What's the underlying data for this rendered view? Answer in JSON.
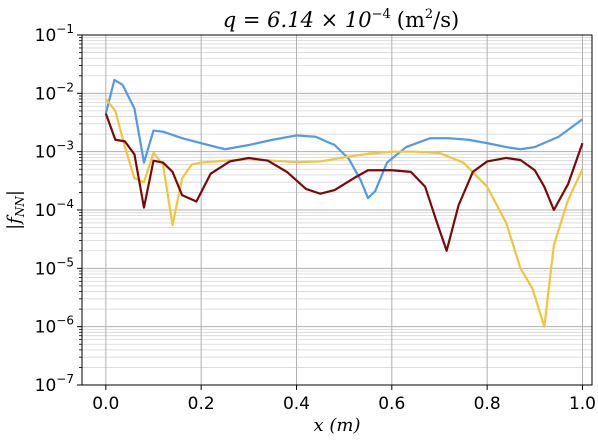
{
  "chart_data": {
    "type": "line",
    "title": {
      "prefix": "q = 6.14 × 10",
      "exponent": "−4",
      "unit_open": "(m",
      "unit_sup": "2",
      "unit_close": "/s)"
    },
    "xlabel": "x (m)",
    "ylabel": "|f_NN|",
    "ylabel_parts": {
      "bar_left": "|",
      "f": "f",
      "sub": "NN",
      "bar_right": "|"
    },
    "xlim": [
      -0.05,
      1.02
    ],
    "ylim": [
      1e-07,
      0.1
    ],
    "yscale": "log",
    "grid": "major-and-minor",
    "x_ticks": [
      "0.0",
      "0.2",
      "0.4",
      "0.6",
      "0.8",
      "1.0"
    ],
    "x_tick_values": [
      0.0,
      0.2,
      0.4,
      0.6,
      0.8,
      1.0
    ],
    "y_ticks": [
      {
        "base": "10",
        "exp": "−7",
        "value": 1e-07
      },
      {
        "base": "10",
        "exp": "−6",
        "value": 1e-06
      },
      {
        "base": "10",
        "exp": "−5",
        "value": 1e-05
      },
      {
        "base": "10",
        "exp": "−4",
        "value": 0.0001
      },
      {
        "base": "10",
        "exp": "−3",
        "value": 0.001
      },
      {
        "base": "10",
        "exp": "−2",
        "value": 0.01
      },
      {
        "base": "10",
        "exp": "−1",
        "value": 0.1
      }
    ],
    "series": [
      {
        "color": "#5599e6",
        "x": [
          0.0,
          0.018,
          0.035,
          0.06,
          0.08,
          0.1,
          0.12,
          0.16,
          0.2,
          0.25,
          0.3,
          0.35,
          0.4,
          0.44,
          0.48,
          0.51,
          0.535,
          0.55,
          0.565,
          0.59,
          0.63,
          0.68,
          0.72,
          0.76,
          0.8,
          0.84,
          0.87,
          0.9,
          0.95,
          1.0
        ],
        "values": [
          0.0045,
          0.017,
          0.014,
          0.0055,
          0.00065,
          0.0023,
          0.0022,
          0.0017,
          0.0014,
          0.0011,
          0.0013,
          0.0016,
          0.0019,
          0.0018,
          0.0013,
          0.00075,
          0.00032,
          0.00016,
          0.00021,
          0.00065,
          0.0012,
          0.0017,
          0.0017,
          0.0016,
          0.0014,
          0.0012,
          0.0011,
          0.0012,
          0.0018,
          0.0036
        ]
      },
      {
        "color": "#f0c63c",
        "x": [
          0.0,
          0.02,
          0.04,
          0.06,
          0.08,
          0.1,
          0.12,
          0.14,
          0.16,
          0.18,
          0.2,
          0.25,
          0.3,
          0.35,
          0.4,
          0.45,
          0.5,
          0.55,
          0.6,
          0.65,
          0.7,
          0.75,
          0.8,
          0.84,
          0.87,
          0.895,
          0.92,
          0.94,
          0.97,
          1.0
        ],
        "values": [
          0.008,
          0.005,
          0.0012,
          0.00035,
          0.0003,
          0.00095,
          0.0006,
          5.5e-05,
          0.00035,
          0.0006,
          0.00065,
          0.0007,
          0.00075,
          0.0007,
          0.00066,
          0.00068,
          0.0008,
          0.00092,
          0.001,
          0.001,
          0.00095,
          0.00065,
          0.00025,
          6e-05,
          1e-05,
          4.5e-06,
          1e-06,
          2.5e-05,
          0.00015,
          0.0005
        ]
      },
      {
        "color": "#7a0a0a",
        "x": [
          0.0,
          0.02,
          0.04,
          0.06,
          0.08,
          0.1,
          0.12,
          0.14,
          0.16,
          0.19,
          0.22,
          0.26,
          0.3,
          0.34,
          0.38,
          0.42,
          0.45,
          0.48,
          0.52,
          0.55,
          0.6,
          0.64,
          0.67,
          0.695,
          0.715,
          0.74,
          0.77,
          0.8,
          0.84,
          0.87,
          0.9,
          0.92,
          0.94,
          0.97,
          1.0
        ],
        "values": [
          0.0045,
          0.0016,
          0.0015,
          0.0009,
          0.00011,
          0.0007,
          0.00065,
          0.00045,
          0.00018,
          0.00014,
          0.00042,
          0.00068,
          0.00078,
          0.0007,
          0.00045,
          0.00023,
          0.00019,
          0.00022,
          0.00035,
          0.00048,
          0.00048,
          0.00045,
          0.00025,
          6e-05,
          2e-05,
          0.00012,
          0.00045,
          0.00068,
          0.00078,
          0.00072,
          0.00048,
          0.00025,
          0.0001,
          0.00028,
          0.0014
        ]
      }
    ]
  }
}
